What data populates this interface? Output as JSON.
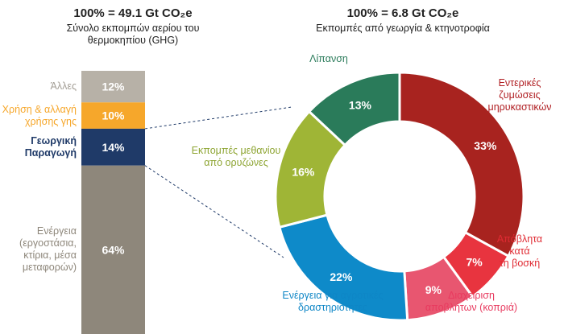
{
  "chart_data": [
    {
      "type": "bar",
      "title": "100% = 49.1 Gt CO₂e",
      "subtitle": "Σύνολο εκπομπών αερίου του θερμοκηπίου (GHG)",
      "categories": [
        "Άλλες",
        "Χρήση & αλλαγή χρήσης γης",
        "Γεωργική Παραγωγή",
        "Ενέργεια (εργοστάσια, κτίρια, μέσα μεταφορών)"
      ],
      "label_lines": [
        [
          "Άλλες"
        ],
        [
          "Χρήση & αλλαγή",
          "χρήσης γης"
        ],
        [
          "Γεωργική",
          "Παραγωγή"
        ],
        [
          "Ενέργεια",
          "(εργοστάσια,",
          "κτίρια, μέσα",
          "μεταφορών)"
        ]
      ],
      "values": [
        12,
        10,
        14,
        64
      ],
      "value_labels": [
        "12%",
        "10%",
        "14%",
        "64%"
      ],
      "colors": [
        "#b7b1a7",
        "#f6a72b",
        "#1f3a68",
        "#8e877b"
      ],
      "label_colors": [
        "#a39e95",
        "#f6a72b",
        "#1f3a68",
        "#8e877b"
      ],
      "stacked": true
    },
    {
      "type": "pie",
      "title": "100% = 6.8 Gt CO₂e",
      "subtitle": "Εκπομπές από γεωργία & κτηνοτροφία",
      "categories": [
        "Εντερικές ζυμώσεις μηρυκαστικών",
        "Απόβλητα κατά τη βοσκή",
        "Διαχείριση αποβλήτων (κοπριά)",
        "Ενέργεια για αγροτικές δραστηριότητες",
        "Εκπομπές μεθανίου από ορυζώνες",
        "Λίπανση"
      ],
      "label_lines": [
        [
          "Εντερικές",
          "ζυμώσεις",
          "μηρυκαστικών"
        ],
        [
          "Απόβλητα",
          "κατά",
          "τη βοσκή"
        ],
        [
          "Διαχείριση",
          "αποβλήτων (κοπριά)"
        ],
        [
          "Ενέργεια για αγροτικές",
          "δραστηριότητες"
        ],
        [
          "Εκπομπές μεθανίου",
          "από ορυζώνες"
        ],
        [
          "Λίπανση"
        ]
      ],
      "values": [
        33,
        7,
        9,
        22,
        16,
        13
      ],
      "value_labels": [
        "33%",
        "7%",
        "9%",
        "22%",
        "16%",
        "13%"
      ],
      "colors": [
        "#a8231f",
        "#e8343f",
        "#e85670",
        "#0e8ac9",
        "#9fb536",
        "#2a7b5a"
      ],
      "label_colors": [
        "#b01e22",
        "#e02b33",
        "#e83a5f",
        "#0e86c6",
        "#8ea533",
        "#2a7b5a"
      ],
      "donut": true
    }
  ]
}
